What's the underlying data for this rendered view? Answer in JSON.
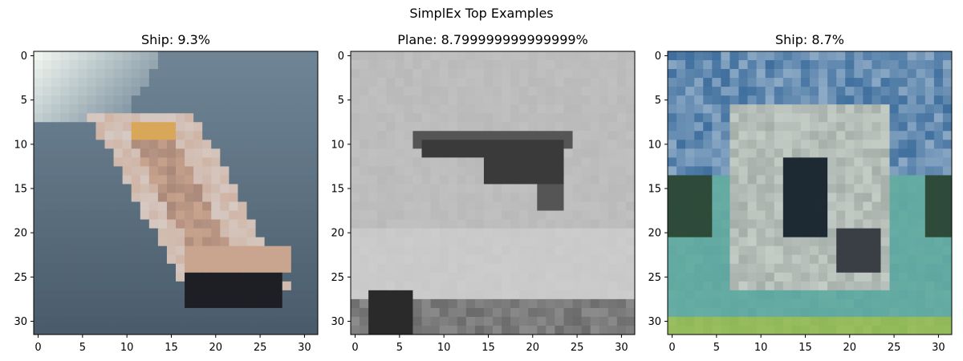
{
  "figure": {
    "suptitle": "SimplEx Top Examples"
  },
  "chart_data": [
    {
      "type": "heatmap",
      "title": "Ship: 9.3%",
      "xticks": [
        0,
        5,
        10,
        15,
        20,
        25,
        30
      ],
      "yticks": [
        0,
        5,
        10,
        15,
        20,
        25,
        30
      ],
      "xlim": [
        -0.5,
        31.5
      ],
      "ylim": [
        31.5,
        -0.5
      ],
      "image_size": [
        32,
        32
      ],
      "image_content": "blurry low-resolution photo of a white motorboat with a tan interior on grey-blue water",
      "palette": {
        "water": "#6f8596",
        "water_dark": "#4a5c6b",
        "hull": "#d6c9c3",
        "deck": "#c9a48e",
        "shadow": "#1d1f24",
        "top_left": "#eef4ee"
      }
    },
    {
      "type": "heatmap",
      "title": "Plane: 8.799999999999999%",
      "xticks": [
        0,
        5,
        10,
        15,
        20,
        25,
        30
      ],
      "yticks": [
        0,
        5,
        10,
        15,
        20,
        25,
        30
      ],
      "xlim": [
        -0.5,
        31.5
      ],
      "ylim": [
        31.5,
        -0.5
      ],
      "image_size": [
        32,
        32
      ],
      "image_content": "grey low-resolution photo of a dark aircraft silhouette against a light grey sky with dark structures at the bottom",
      "palette": {
        "sky": "#b9b9b9",
        "sky_light": "#c8c8c8",
        "plane": "#3a3a3a",
        "plane_mid": "#555555",
        "ground": "#6a6a6a",
        "ground_dark": "#2a2a2a"
      }
    },
    {
      "type": "heatmap",
      "title": "Ship: 8.7%",
      "xticks": [
        0,
        5,
        10,
        15,
        20,
        25,
        30
      ],
      "yticks": [
        0,
        5,
        10,
        15,
        20,
        25,
        30
      ],
      "xlim": [
        -0.5,
        31.5
      ],
      "ylim": [
        31.5,
        -0.5
      ],
      "image_size": [
        32,
        32
      ],
      "image_content": "low-resolution photo of a boat with a cabin on turquoise water under a blue sky, greenish shore at the bottom",
      "palette": {
        "sky": "#3f6f9e",
        "sky_light": "#9fb8cf",
        "boat": "#c4ccc6",
        "cabin": "#1e2a33",
        "water": "#5fa7a0",
        "shore": "#8fb857",
        "trees": "#2e4b3a"
      }
    }
  ]
}
